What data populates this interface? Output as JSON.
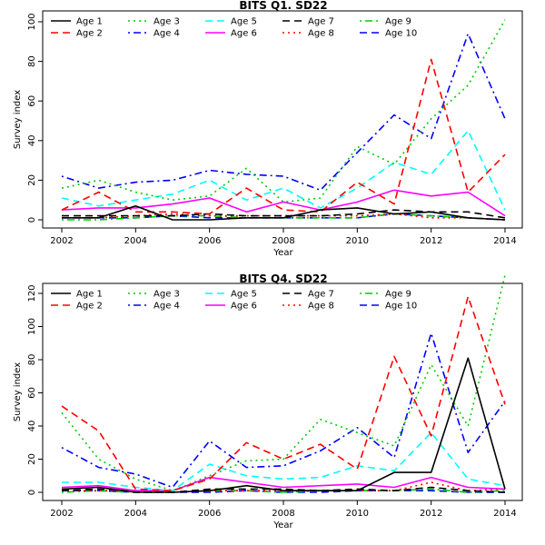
{
  "chart_data": [
    {
      "type": "line",
      "title": "BITS Q1. SD22",
      "xlabel": "Year",
      "ylabel": "Survey index",
      "xlim": [
        2002,
        2014
      ],
      "ylim": [
        0,
        100
      ],
      "xticks": [
        "2002",
        "2004",
        "2006",
        "2008",
        "2010",
        "2012",
        "2014"
      ],
      "yticks": [
        "0",
        "20",
        "40",
        "60",
        "80",
        "100"
      ],
      "legend_position": "top-left",
      "x": [
        2002,
        2003,
        2004,
        2005,
        2006,
        2007,
        2008,
        2009,
        2010,
        2011,
        2012,
        2013,
        2014
      ],
      "series": [
        {
          "name": "Age 1",
          "color": "#000000",
          "dash": "solid",
          "values": [
            1,
            1,
            7,
            0,
            0,
            1,
            1,
            5,
            6,
            3,
            4,
            1,
            0
          ]
        },
        {
          "name": "Age 2",
          "color": "#ff0000",
          "dash": "long",
          "values": [
            5,
            14,
            4,
            4,
            3,
            16,
            5,
            4,
            19,
            8,
            81,
            14,
            33
          ]
        },
        {
          "name": "Age 3",
          "color": "#00cc00",
          "dash": "dotted",
          "values": [
            16,
            20,
            14,
            10,
            12,
            26,
            9,
            11,
            37,
            28,
            51,
            68,
            101
          ]
        },
        {
          "name": "Age 4",
          "color": "#0000ff",
          "dash": "dotdash",
          "values": [
            22,
            16,
            19,
            20,
            25,
            23,
            22,
            15,
            34,
            53,
            41,
            94,
            51
          ]
        },
        {
          "name": "Age 5",
          "color": "#00ffff",
          "dash": "long",
          "values": [
            11,
            7,
            10,
            13,
            20,
            10,
            16,
            6,
            16,
            29,
            23,
            45,
            5
          ]
        },
        {
          "name": "Age 6",
          "color": "#ff00ff",
          "dash": "solid",
          "values": [
            5,
            6,
            6,
            8,
            11,
            4,
            9,
            5,
            9,
            15,
            12,
            14,
            2
          ]
        },
        {
          "name": "Age 7",
          "color": "#000000",
          "dash": "long",
          "values": [
            2,
            2,
            2,
            2,
            3,
            2,
            2,
            2,
            3,
            5,
            4,
            4,
            1
          ]
        },
        {
          "name": "Age 8",
          "color": "#ff0000",
          "dash": "dotted",
          "values": [
            1,
            1,
            2,
            3,
            2,
            2,
            2,
            2,
            2,
            3,
            1,
            1,
            0
          ]
        },
        {
          "name": "Age 9",
          "color": "#00cc00",
          "dash": "dotdash",
          "values": [
            0,
            0,
            1,
            2,
            2,
            1,
            1,
            1,
            1,
            3,
            2,
            1,
            0
          ]
        },
        {
          "name": "Age 10",
          "color": "#0000ff",
          "dash": "long",
          "values": [
            1,
            1,
            1,
            2,
            1,
            1,
            1,
            1,
            1,
            3,
            2,
            1,
            0
          ]
        }
      ]
    },
    {
      "type": "line",
      "title": "BITS Q4. SD22",
      "xlabel": "Year",
      "ylabel": "Survey index",
      "xlim": [
        2002,
        2014
      ],
      "ylim": [
        0,
        130
      ],
      "xticks": [
        "2002",
        "2004",
        "2006",
        "2008",
        "2010",
        "2012",
        "2014"
      ],
      "yticks": [
        "0",
        "20",
        "40",
        "60",
        "80",
        "100",
        "120"
      ],
      "legend_position": "top-left",
      "x": [
        2002,
        2003,
        2004,
        2005,
        2006,
        2007,
        2008,
        2009,
        2010,
        2011,
        2012,
        2013,
        2014
      ],
      "series": [
        {
          "name": "Age 1",
          "color": "#000000",
          "dash": "solid",
          "values": [
            2,
            3,
            0,
            0,
            1,
            4,
            1,
            1,
            1,
            12,
            12,
            81,
            2
          ]
        },
        {
          "name": "Age 2",
          "color": "#ff0000",
          "dash": "long",
          "values": [
            52,
            37,
            2,
            1,
            8,
            30,
            20,
            29,
            14,
            82,
            34,
            118,
            53
          ]
        },
        {
          "name": "Age 3",
          "color": "#00cc00",
          "dash": "dotted",
          "values": [
            48,
            20,
            8,
            1,
            10,
            19,
            20,
            44,
            36,
            28,
            77,
            40,
            131
          ]
        },
        {
          "name": "Age 4",
          "color": "#0000ff",
          "dash": "dotdash",
          "values": [
            27,
            15,
            11,
            3,
            31,
            15,
            16,
            25,
            39,
            21,
            96,
            24,
            55
          ]
        },
        {
          "name": "Age 5",
          "color": "#00ffff",
          "dash": "long",
          "values": [
            6,
            6,
            3,
            1,
            17,
            10,
            8,
            9,
            16,
            13,
            36,
            8,
            4
          ]
        },
        {
          "name": "Age 6",
          "color": "#ff00ff",
          "dash": "solid",
          "values": [
            3,
            4,
            1,
            1,
            9,
            6,
            3,
            4,
            5,
            3,
            9,
            3,
            2
          ]
        },
        {
          "name": "Age 7",
          "color": "#000000",
          "dash": "long",
          "values": [
            1,
            2,
            1,
            0,
            2,
            2,
            2,
            1,
            2,
            1,
            3,
            1,
            0
          ]
        },
        {
          "name": "Age 8",
          "color": "#ff0000",
          "dash": "dotted",
          "values": [
            1,
            1,
            1,
            0,
            1,
            1,
            1,
            1,
            1,
            1,
            6,
            1,
            2
          ]
        },
        {
          "name": "Age 9",
          "color": "#00cc00",
          "dash": "dotdash",
          "values": [
            0,
            1,
            0,
            0,
            1,
            1,
            0,
            1,
            1,
            1,
            2,
            0,
            1
          ]
        },
        {
          "name": "Age 10",
          "color": "#0000ff",
          "dash": "long",
          "values": [
            1,
            1,
            0,
            0,
            0,
            1,
            0,
            0,
            1,
            1,
            1,
            0,
            0
          ]
        }
      ]
    }
  ]
}
